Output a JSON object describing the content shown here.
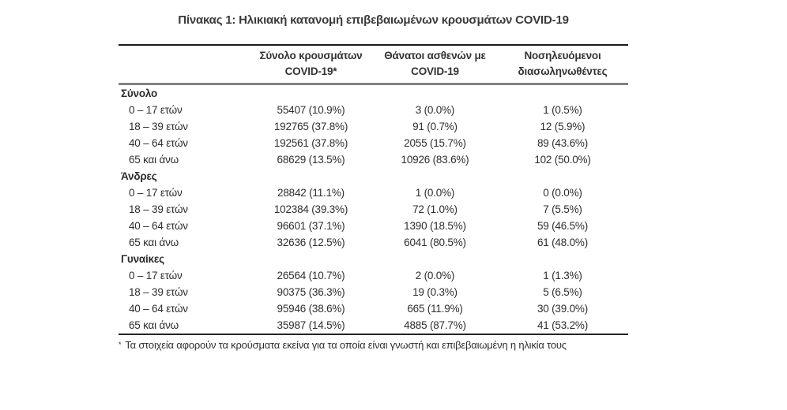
{
  "title": "Πίνακας 1: Ηλικιακή κατανομή επιβεβαιωμένων κρουσμάτων COVID-19",
  "table": {
    "columns": [
      {
        "line1": "Σύνολο κρουσμάτων",
        "line2": "COVID-19*"
      },
      {
        "line1": "Θάνατοι ασθενών με",
        "line2": "COVID-19"
      },
      {
        "line1": "Νοσηλευόμενοι",
        "line2": "διασωληνωθέντες"
      }
    ],
    "sections": [
      {
        "label": "Σύνολο",
        "rows": [
          {
            "age": "0 – 17 ετών",
            "cases": "55407 (10.9%)",
            "deaths": "3 (0.0%)",
            "intubated": "1 (0.5%)"
          },
          {
            "age": "18 – 39 ετών",
            "cases": "192765 (37.8%)",
            "deaths": "91 (0.7%)",
            "intubated": "12 (5.9%)"
          },
          {
            "age": "40 – 64 ετών",
            "cases": "192561 (37.8%)",
            "deaths": "2055 (15.7%)",
            "intubated": "89 (43.6%)"
          },
          {
            "age": "65 και άνω",
            "cases": "68629 (13.5%)",
            "deaths": "10926 (83.6%)",
            "intubated": "102 (50.0%)"
          }
        ]
      },
      {
        "label": "Άνδρες",
        "rows": [
          {
            "age": "0 – 17 ετών",
            "cases": "28842 (11.1%)",
            "deaths": "1 (0.0%)",
            "intubated": "0 (0.0%)"
          },
          {
            "age": "18 – 39 ετών",
            "cases": "102384 (39.3%)",
            "deaths": "72 (1.0%)",
            "intubated": "7 (5.5%)"
          },
          {
            "age": "40 – 64 ετών",
            "cases": "96601 (37.1%)",
            "deaths": "1390 (18.5%)",
            "intubated": "59 (46.5%)"
          },
          {
            "age": "65 και άνω",
            "cases": "32636 (12.5%)",
            "deaths": "6041 (80.5%)",
            "intubated": "61 (48.0%)"
          }
        ]
      },
      {
        "label": "Γυναίκες",
        "rows": [
          {
            "age": "0 – 17 ετών",
            "cases": "26564 (10.7%)",
            "deaths": "2 (0.0%)",
            "intubated": "1 (1.3%)"
          },
          {
            "age": "18 – 39 ετών",
            "cases": "90375 (36.3%)",
            "deaths": "19 (0.3%)",
            "intubated": "5 (6.5%)"
          },
          {
            "age": "40 – 64 ετών",
            "cases": "95946 (38.6%)",
            "deaths": "665 (11.9%)",
            "intubated": "30 (39.0%)"
          },
          {
            "age": "65 και άνω",
            "cases": "35987 (14.5%)",
            "deaths": "4885 (87.7%)",
            "intubated": "41 (53.2%)"
          }
        ]
      }
    ],
    "footnote": {
      "marker": "*",
      "text": "Τα στοιχεία αφορούν τα κρούσματα εκείνα για τα οποία είναι γνωστή και επιβεβαιωμένη η ηλικία τους"
    }
  }
}
